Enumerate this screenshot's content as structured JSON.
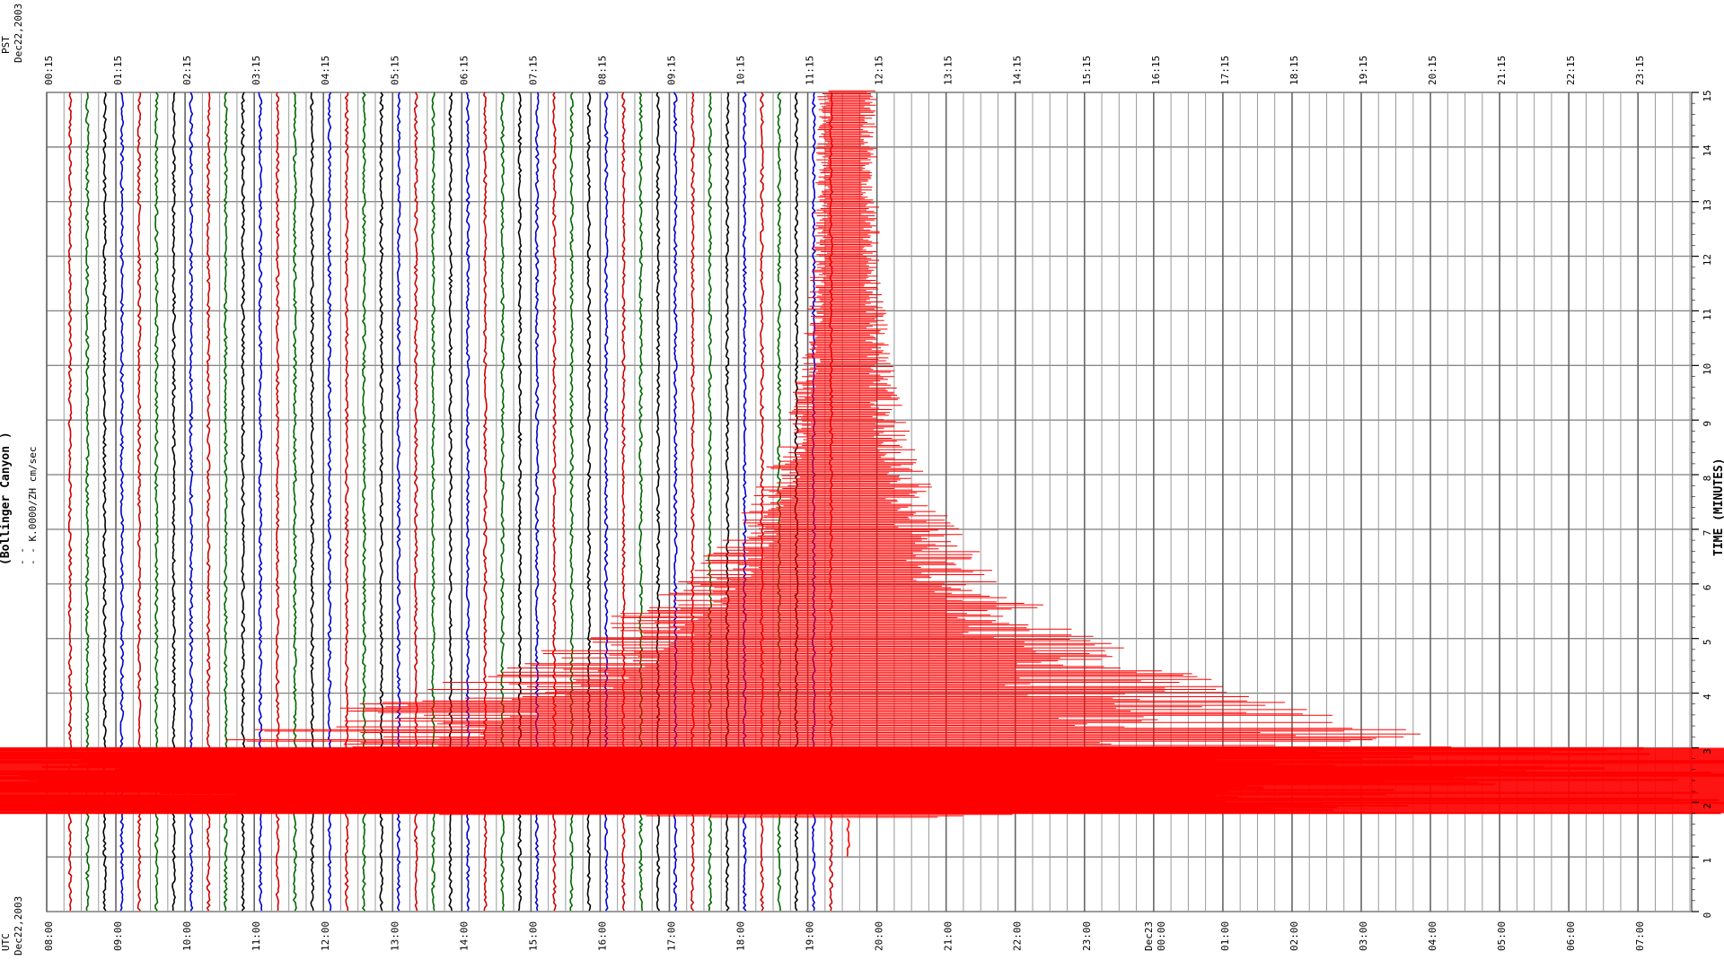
{
  "chart_data": {
    "type": "line",
    "title": "(Bollinger Canyon )",
    "subtitle_lines": [
      "- - ",
      "- - K.0000/ZH cm/sec"
    ],
    "timezones": {
      "top": {
        "label": "PST",
        "date": "Dec22,2003"
      },
      "bottom": {
        "label": "UTC",
        "date": "Dec22,2003"
      }
    },
    "pst_tick_labels": [
      "00:15",
      "01:15",
      "02:15",
      "03:15",
      "04:15",
      "05:15",
      "06:15",
      "07:15",
      "08:15",
      "09:15",
      "10:15",
      "11:15",
      "12:15",
      "13:15",
      "14:15",
      "15:15",
      "16:15",
      "17:15",
      "18:15",
      "19:15",
      "20:15",
      "21:15",
      "22:15",
      "23:15"
    ],
    "utc_tick_labels": [
      "08:00",
      "09:00",
      "10:00",
      "11:00",
      "12:00",
      "13:00",
      "14:00",
      "15:00",
      "16:00",
      "17:00",
      "18:00",
      "19:00",
      "20:00",
      "21:00",
      "22:00",
      "23:00",
      "Dec23 00:00",
      "01:00",
      "02:00",
      "03:00",
      "04:00",
      "05:00",
      "06:00",
      "07:00"
    ],
    "minute_axis": {
      "label": "TIME (MINUTES)",
      "ticks": [
        0,
        1,
        2,
        3,
        4,
        5,
        6,
        7,
        8,
        9,
        10,
        11,
        12,
        13,
        14,
        15
      ],
      "range": [
        0,
        15
      ]
    },
    "trace_colors": [
      "#cc0000",
      "#006600",
      "#000000",
      "#0000cc"
    ],
    "event_color": "#ff0000",
    "traces_per_hour": 4,
    "total_traces": 96,
    "recorded_traces": 46,
    "event": {
      "trace_index": 45,
      "onset_minute": 1.7,
      "peak_window_minutes": [
        1.8,
        3.0
      ]
    },
    "grid": true
  }
}
